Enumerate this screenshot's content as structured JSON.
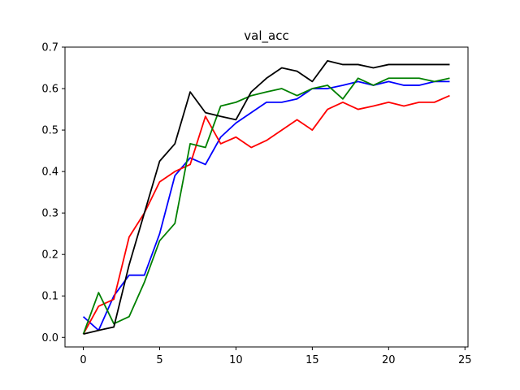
{
  "chart_data": {
    "type": "line",
    "title": "val_acc",
    "xlabel": "",
    "ylabel": "",
    "xlim": [
      -1.2,
      25.2
    ],
    "ylim": [
      -0.023,
      0.7
    ],
    "grid": false,
    "x_ticks": [
      0,
      5,
      10,
      15,
      20,
      25
    ],
    "y_ticks": [
      0.0,
      0.1,
      0.2,
      0.3,
      0.4,
      0.5,
      0.6,
      0.7
    ],
    "x": [
      0,
      1,
      2,
      3,
      4,
      5,
      6,
      7,
      8,
      9,
      10,
      11,
      12,
      13,
      14,
      15,
      16,
      17,
      18,
      19,
      20,
      21,
      22,
      23,
      24
    ],
    "series": [
      {
        "color": "#0000ff",
        "values": [
          0.05,
          0.017,
          0.1,
          0.15,
          0.15,
          0.25,
          0.39,
          0.433,
          0.417,
          0.483,
          0.517,
          0.542,
          0.567,
          0.567,
          0.575,
          0.6,
          0.6,
          0.608,
          0.617,
          0.608,
          0.617,
          0.608,
          0.608,
          0.617,
          0.617
        ]
      },
      {
        "color": "#ff0000",
        "values": [
          0.008,
          0.075,
          0.092,
          0.242,
          0.3,
          0.375,
          0.4,
          0.417,
          0.533,
          0.467,
          0.483,
          0.458,
          0.475,
          0.5,
          0.525,
          0.5,
          0.55,
          0.567,
          0.55,
          0.558,
          0.567,
          0.558,
          0.567,
          0.567,
          0.583
        ]
      },
      {
        "color": "#008000",
        "values": [
          0.008,
          0.108,
          0.033,
          0.05,
          0.133,
          0.233,
          0.275,
          0.467,
          0.458,
          0.558,
          0.567,
          0.583,
          0.592,
          0.6,
          0.583,
          0.6,
          0.608,
          0.575,
          0.625,
          0.608,
          0.625,
          0.625,
          0.625,
          0.617,
          0.625
        ]
      },
      {
        "color": "#000000",
        "values": [
          0.008,
          0.017,
          0.025,
          0.175,
          0.3,
          0.425,
          0.467,
          0.592,
          0.542,
          0.533,
          0.525,
          0.592,
          0.625,
          0.65,
          0.642,
          0.617,
          0.667,
          0.658,
          0.658,
          0.65,
          0.658,
          0.658,
          0.658,
          0.658,
          0.658
        ]
      }
    ]
  }
}
